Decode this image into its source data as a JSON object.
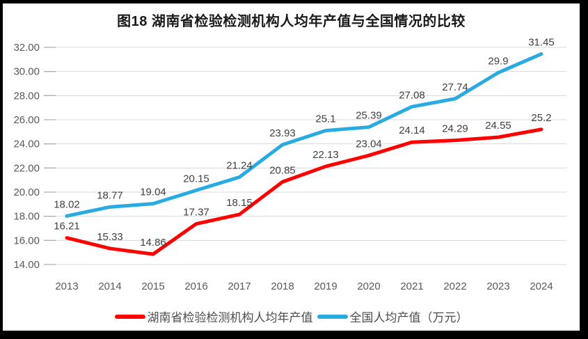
{
  "frame": {
    "title": "图18 湖南省检验检测机构人均年产值与全国情况的比较"
  },
  "chart_data": {
    "type": "line",
    "title": "图18 湖南省检验检测机构人均年产值与全国情况的比较",
    "categories": [
      "2013",
      "2014",
      "2015",
      "2016",
      "2017",
      "2018",
      "2019",
      "2020",
      "2021",
      "2022",
      "2023",
      "2024"
    ],
    "series": [
      {
        "name": "湖南省检验检测机构人均年产值",
        "color": "#FF0000",
        "values": [
          16.21,
          15.33,
          14.86,
          17.37,
          18.15,
          20.85,
          22.13,
          23.04,
          24.14,
          24.29,
          24.55,
          25.2
        ]
      },
      {
        "name": "全国人均产值（万元）",
        "color": "#29ABE2",
        "values": [
          18.02,
          18.77,
          19.04,
          20.15,
          21.24,
          23.93,
          25.1,
          25.39,
          27.08,
          27.74,
          29.9,
          31.45
        ]
      }
    ],
    "xlabel": "",
    "ylabel": "",
    "ylim": [
      14,
      32
    ],
    "y_step": 2,
    "y_tick_decimals": 2,
    "grid": true,
    "legend_position": "bottom",
    "axis_label_color": "#595959",
    "grid_color": "#D9D9D9",
    "tick_color": "#ADADAD",
    "data_label_color": "#404040"
  }
}
